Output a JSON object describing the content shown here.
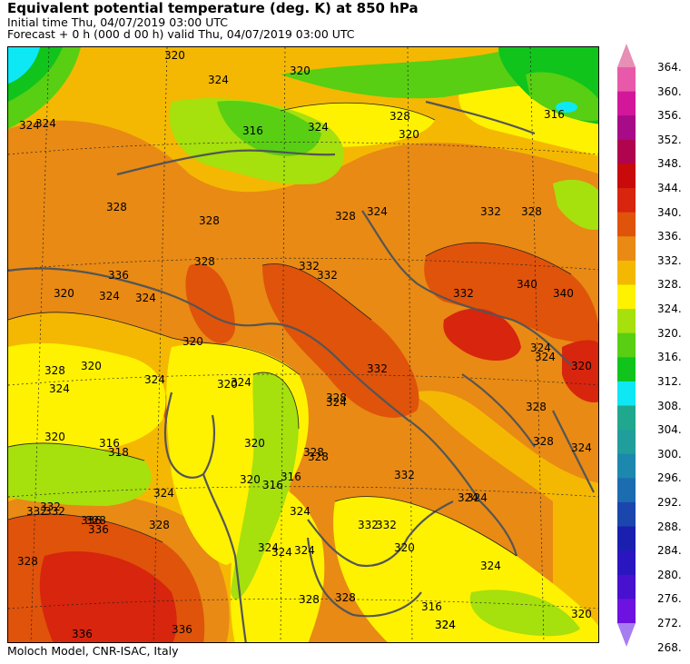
{
  "header": {
    "title": "Equivalent potential temperature (deg. K) at 850 hPa",
    "initial_time": "Initial time  Thu, 04/07/2019  03:00 UTC",
    "forecast": "Forecast  +    0 h  (000 d 00 h)  valid Thu, 04/07/2019 03:00 UTC"
  },
  "footer": {
    "credit": "Moloch Model, CNR-ISAC, Italy"
  },
  "colorbar": {
    "levels": [
      "364.",
      "360.",
      "356.",
      "352.",
      "348.",
      "344.",
      "340.",
      "336.",
      "332.",
      "328.",
      "324.",
      "320.",
      "316.",
      "312.",
      "308.",
      "304.",
      "300.",
      "296.",
      "292.",
      "288.",
      "284.",
      "280.",
      "276.",
      "272.",
      "268."
    ],
    "colors": [
      "#e78fb4",
      "#e85aa9",
      "#d3179a",
      "#a70b87",
      "#b0044e",
      "#c80a0a",
      "#d7250e",
      "#e0530a",
      "#e88a14",
      "#f4b802",
      "#fff200",
      "#a6e00d",
      "#58cf12",
      "#10c41c",
      "#0ee8f5",
      "#20a88e",
      "#1f9e9c",
      "#1c88ad",
      "#1c6cb0",
      "#1b46ad",
      "#1a1fb0",
      "#2a16c0",
      "#4810cf",
      "#6d12e0",
      "#a77ef0"
    ]
  },
  "contour_labels": [
    "324",
    "320",
    "324",
    "320",
    "324",
    "316",
    "324",
    "328",
    "332",
    "328",
    "316",
    "328",
    "328",
    "332",
    "324",
    "324",
    "328",
    "320",
    "320",
    "336",
    "332",
    "340",
    "320",
    "324",
    "328",
    "316",
    "324",
    "324",
    "324",
    "324",
    "320",
    "332",
    "328",
    "324",
    "328",
    "332",
    "328",
    "324",
    "320",
    "320",
    "324",
    "324",
    "320",
    "324",
    "316",
    "318",
    "332",
    "336",
    "328",
    "336",
    "324",
    "328",
    "324",
    "328",
    "332",
    "324",
    "324",
    "328",
    "332",
    "320",
    "324",
    "328",
    "316",
    "336",
    "340",
    "324",
    "320",
    "328",
    "320",
    "316",
    "328",
    "324",
    "332",
    "332",
    "336",
    "324",
    "328",
    "320",
    "332"
  ]
}
